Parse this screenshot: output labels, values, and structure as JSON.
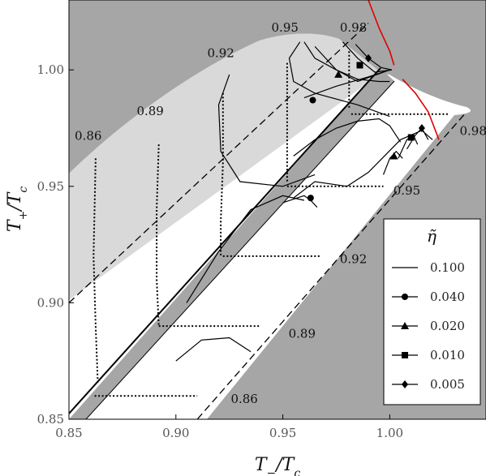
{
  "chart_data": {
    "type": "line",
    "xlabel": "T_−/T_c",
    "ylabel": "T_+/T_c",
    "xlim": [
      0.85,
      1.045
    ],
    "ylim": [
      0.85,
      1.03
    ],
    "xticks": [
      0.85,
      0.9,
      0.95,
      1.0
    ],
    "xtick_labels": [
      "0.85",
      "0.90",
      "0.95",
      "1.00"
    ],
    "yticks": [
      0.85,
      0.9,
      0.95,
      1.0
    ],
    "ytick_labels": [
      "0.85",
      "0.90",
      "0.95",
      "1.00"
    ],
    "grid": false,
    "legend": {
      "title": "η̃",
      "placement": "bottom-right",
      "entries": [
        {
          "label": "0.100",
          "marker": "none"
        },
        {
          "label": "0.040",
          "marker": "circle"
        },
        {
          "label": "0.020",
          "marker": "triangle"
        },
        {
          "label": "0.010",
          "marker": "square"
        },
        {
          "label": "0.005",
          "marker": "diamond"
        }
      ]
    },
    "dashed_lines": [
      {
        "x": [
          0.85,
          0.99
        ],
        "y": [
          0.9,
          1.02
        ]
      },
      {
        "x": [
          0.91,
          1.035
        ],
        "y": [
          0.85,
          0.981
        ]
      }
    ],
    "contour_labels": [
      {
        "text": "0.86",
        "x": 0.859,
        "y": 0.97
      },
      {
        "text": "0.89",
        "x": 0.888,
        "y": 0.9805
      },
      {
        "text": "0.92",
        "x": 0.921,
        "y": 1.0055
      },
      {
        "text": "0.95",
        "x": 0.951,
        "y": 1.0165
      },
      {
        "text": "0.98",
        "x": 0.983,
        "y": 1.0165
      },
      {
        "text": "0.98",
        "x": 1.039,
        "y": 0.972
      },
      {
        "text": "0.95",
        "x": 1.008,
        "y": 0.9465
      },
      {
        "text": "0.92",
        "x": 0.983,
        "y": 0.917
      },
      {
        "text": "0.89",
        "x": 0.959,
        "y": 0.885
      },
      {
        "text": "0.86",
        "x": 0.932,
        "y": 0.857
      }
    ],
    "level_sets": [
      {
        "name": "0.86",
        "upper": {
          "x": [
            0.8625,
            0.8615,
            0.8625,
            0.8635
          ],
          "y": [
            0.962,
            0.92,
            0.89,
            0.865
          ]
        },
        "lower": {
          "x": [
            0.862,
            0.91
          ],
          "y": [
            0.86,
            0.86
          ]
        }
      },
      {
        "name": "0.89",
        "upper": {
          "x": [
            0.892,
            0.891,
            0.891,
            0.892
          ],
          "y": [
            0.968,
            0.94,
            0.91,
            0.89
          ]
        },
        "lower": {
          "x": [
            0.892,
            0.939
          ],
          "y": [
            0.89,
            0.89
          ]
        }
      },
      {
        "name": "0.92",
        "upper": {
          "x": [
            0.922,
            0.922,
            0.921,
            0.921
          ],
          "y": [
            0.99,
            0.96,
            0.935,
            0.92
          ]
        },
        "lower": {
          "x": [
            0.922,
            0.968
          ],
          "y": [
            0.92,
            0.92
          ]
        }
      },
      {
        "name": "0.95",
        "upper": {
          "x": [
            0.952,
            0.952,
            0.952
          ],
          "y": [
            1.003,
            0.975,
            0.952
          ]
        },
        "lower": {
          "x": [
            0.952,
            0.997
          ],
          "y": [
            0.95,
            0.95
          ]
        }
      },
      {
        "name": "0.98",
        "upper": {
          "x": [
            0.981,
            0.981
          ],
          "y": [
            1.008,
            0.983
          ]
        },
        "lower": {
          "x": [
            0.982,
            1.028
          ],
          "y": [
            0.981,
            0.981
          ]
        }
      }
    ],
    "series": [
      {
        "name": "0.100",
        "marker": "none",
        "segments": [
          {
            "x": [
              0.958,
              0.953,
              0.955,
              0.965,
              0.985,
              1.0
            ],
            "y": [
              1.012,
              1.005,
              0.995,
              0.99,
              0.985,
              0.98
            ]
          },
          {
            "x": [
              0.925,
              0.92,
              0.921,
              0.93,
              0.95,
              0.965
            ],
            "y": [
              0.998,
              0.985,
              0.965,
              0.952,
              0.95,
              0.955
            ]
          },
          {
            "x": [
              0.96,
              0.965,
              0.975,
              0.985,
              0.995,
              1.0
            ],
            "y": [
              1.012,
              1.005,
              1.0,
              0.996,
              0.995,
              0.995
            ]
          },
          {
            "x": [
              0.955,
              0.965,
              0.98,
              0.99,
              1.005,
              1.015,
              1.02
            ],
            "y": [
              0.945,
              0.952,
              0.95,
              0.956,
              0.97,
              0.974,
              0.97
            ]
          },
          {
            "x": [
              0.955,
              0.965,
              0.975,
              0.985,
              0.995,
              1.0,
              1.005
            ],
            "y": [
              0.963,
              0.97,
              0.975,
              0.978,
              0.979,
              0.976,
              0.969
            ]
          },
          {
            "x": [
              0.905,
              0.92,
              0.935,
              0.95,
              0.96
            ],
            "y": [
              0.9,
              0.922,
              0.94,
              0.946,
              0.944
            ]
          },
          {
            "x": [
              0.9,
              0.912,
              0.925,
              0.935
            ],
            "y": [
              0.875,
              0.884,
              0.885,
              0.879
            ]
          }
        ]
      },
      {
        "name": "0.040",
        "marker": "circle",
        "segments": [
          {
            "x": [
              0.96,
              0.975,
              0.99,
              1.0
            ],
            "y": [
              0.988,
              0.993,
              0.997,
              1.0
            ]
          },
          {
            "x": [
              0.95,
              0.96,
              0.963,
              0.966
            ],
            "y": [
              0.943,
              0.946,
              0.944,
              0.941
            ]
          }
        ],
        "points": {
          "x": [
            0.964,
            0.963
          ],
          "y": [
            0.987,
            0.945
          ]
        }
      },
      {
        "name": "0.020",
        "marker": "triangle",
        "segments": [
          {
            "x": [
              0.965,
              0.975,
              0.985,
              1.0
            ],
            "y": [
              1.01,
              1.0,
              0.995,
              1.0
            ]
          },
          {
            "x": [
              0.997,
              1.0,
              1.003,
              1.006
            ],
            "y": [
              0.955,
              0.962,
              0.965,
              0.962
            ]
          }
        ],
        "points": {
          "x": [
            0.976,
            1.002
          ],
          "y": [
            0.998,
            0.963
          ]
        }
      },
      {
        "name": "0.010",
        "marker": "square",
        "segments": [
          {
            "x": [
              0.978,
              0.985,
              0.993,
              1.001
            ],
            "y": [
              1.012,
              1.005,
              0.999,
              1.0
            ]
          },
          {
            "x": [
              1.004,
              1.008,
              1.011,
              1.013
            ],
            "y": [
              0.962,
              0.97,
              0.972,
              0.968
            ]
          }
        ],
        "points": {
          "x": [
            0.986,
            1.01
          ],
          "y": [
            1.002,
            0.971
          ]
        }
      },
      {
        "name": "0.005",
        "marker": "diamond",
        "segments": [
          {
            "x": [
              0.984,
              0.99,
              0.996,
              1.001
            ],
            "y": [
              1.011,
              1.005,
              1.001,
              1.0
            ]
          },
          {
            "x": [
              1.008,
              1.012,
              1.015,
              1.018
            ],
            "y": [
              0.966,
              0.972,
              0.975,
              0.97
            ]
          }
        ],
        "points": {
          "x": [
            0.99,
            1.015
          ],
          "y": [
            1.005,
            0.975
          ]
        }
      }
    ],
    "red_boundary": [
      {
        "x": [
          0.99,
          0.995,
          1.0,
          1.002
        ],
        "y": [
          1.03,
          1.018,
          1.008,
          1.002
        ]
      },
      {
        "x": [
          1.006,
          1.012,
          1.018,
          1.023
        ],
        "y": [
          0.996,
          0.99,
          0.982,
          0.97
        ]
      }
    ]
  }
}
